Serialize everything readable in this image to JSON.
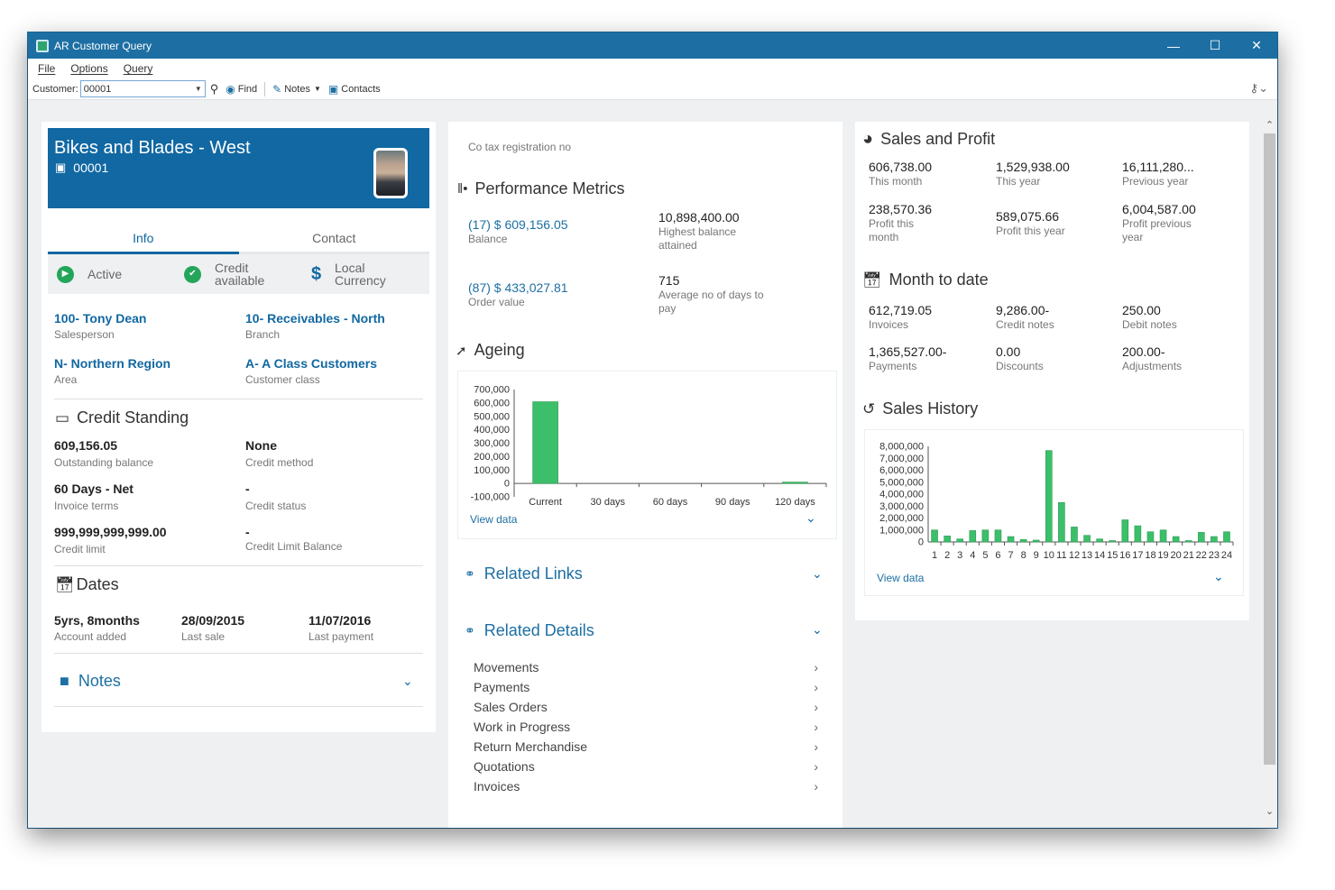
{
  "window": {
    "title": "AR Customer Query"
  },
  "menu": {
    "file": "File",
    "options": "Options",
    "query": "Query"
  },
  "toolbar": {
    "customer_label": "Customer:",
    "customer_value": "00001",
    "find": "Find",
    "notes": "Notes",
    "contacts": "Contacts"
  },
  "customer": {
    "name": "Bikes and Blades - West",
    "code": "00001"
  },
  "tabs": {
    "info": "Info",
    "contact": "Contact"
  },
  "status": {
    "active": "Active",
    "credit_1": "Credit",
    "credit_2": "available",
    "currency_1": "Local",
    "currency_2": "Currency"
  },
  "info": {
    "salesperson": "100- Tony Dean",
    "salesperson_label": "Salesperson",
    "branch": "10- Receivables - North",
    "branch_label": "Branch",
    "area": "N- Northern Region",
    "area_label": "Area",
    "customer_class": "A- A Class Customers",
    "customer_class_label": "Customer class"
  },
  "credit": {
    "title": "Credit Standing",
    "outstanding": "609,156.05",
    "outstanding_label": "Outstanding balance",
    "method": "None",
    "method_label": "Credit method",
    "terms": "60 Days - Net",
    "terms_label": "Invoice terms",
    "status": "-",
    "status_label": "Credit status",
    "limit": "999,999,999,999.00",
    "limit_label": "Credit limit",
    "limit_balance": "-",
    "limit_balance_label": "Credit Limit Balance"
  },
  "dates": {
    "title": "Dates",
    "added": "5yrs, 8months",
    "added_label": "Account added",
    "last_sale": "28/09/2015",
    "last_sale_label": "Last sale",
    "last_payment": "11/07/2016",
    "last_payment_label": "Last payment"
  },
  "notes": {
    "title": "Notes"
  },
  "tax": {
    "label": "Co tax registration no"
  },
  "performance": {
    "title": "Performance Metrics",
    "balance": "(17) $ 609,156.05",
    "balance_label": "Balance",
    "highest": "10,898,400.00",
    "highest_label_1": "Highest balance",
    "highest_label_2": "attained",
    "order": "(87) $ 433,027.81",
    "order_label": "Order value",
    "days": "715",
    "days_label_1": "Average no of days to",
    "days_label_2": "pay"
  },
  "ageing": {
    "title": "Ageing",
    "view_data": "View data"
  },
  "related_links": {
    "title": "Related Links"
  },
  "related_details": {
    "title": "Related Details",
    "items": [
      "Movements",
      "Payments",
      "Sales Orders",
      "Work in Progress",
      "Return Merchandise",
      "Quotations",
      "Invoices"
    ]
  },
  "sales_profit": {
    "title": "Sales and Profit",
    "this_month": "606,738.00",
    "this_month_label": "This month",
    "this_year": "1,529,938.00",
    "this_year_label": "This year",
    "previous_year": "16,111,280...",
    "previous_year_label": "Previous year",
    "profit_month": "238,570.36",
    "profit_month_label_1": "Profit this",
    "profit_month_label_2": "month",
    "profit_year": "589,075.66",
    "profit_year_label": "Profit this year",
    "profit_prev": "6,004,587.00",
    "profit_prev_label_1": "Profit previous",
    "profit_prev_label_2": "year"
  },
  "mtd": {
    "title": "Month to date",
    "invoices": "612,719.05",
    "invoices_label": "Invoices",
    "credit_notes": "9,286.00-",
    "credit_notes_label": "Credit notes",
    "debit_notes": "250.00",
    "debit_notes_label": "Debit notes",
    "payments": "1,365,527.00-",
    "payments_label": "Payments",
    "discounts": "0.00",
    "discounts_label": "Discounts",
    "adjustments": "200.00-",
    "adjustments_label": "Adjustments"
  },
  "sales_history": {
    "title": "Sales History",
    "view_data": "View data"
  },
  "colors": {
    "brand": "#1168a2",
    "bar": "#3cbf6a",
    "active": "#23a55a"
  },
  "chart_data": [
    {
      "type": "bar",
      "categories": [
        "Current",
        "30 days",
        "60 days",
        "90 days",
        "120 days"
      ],
      "values": [
        609156,
        0,
        0,
        0,
        1500
      ],
      "ylim": [
        -100000,
        700000
      ],
      "yticks": [
        "700,000",
        "600,000",
        "500,000",
        "400,000",
        "300,000",
        "200,000",
        "100,000",
        "0",
        "-100,000"
      ],
      "grid": false
    },
    {
      "type": "bar",
      "categories": [
        "1",
        "2",
        "3",
        "4",
        "5",
        "6",
        "7",
        "8",
        "9",
        "10",
        "11",
        "12",
        "13",
        "14",
        "15",
        "16",
        "17",
        "18",
        "19",
        "20",
        "21",
        "22",
        "23",
        "24"
      ],
      "values": [
        1000000,
        500000,
        250000,
        950000,
        1000000,
        1000000,
        450000,
        200000,
        150000,
        7650000,
        3300000,
        1250000,
        550000,
        250000,
        100000,
        1850000,
        1350000,
        850000,
        1000000,
        450000,
        100000,
        800000,
        450000,
        850000
      ],
      "ylim": [
        0,
        8000000
      ],
      "yticks": [
        "8,000,000",
        "7,000,000",
        "6,000,000",
        "5,000,000",
        "4,000,000",
        "3,000,000",
        "2,000,000",
        "1,000,000",
        "0"
      ],
      "grid": false
    }
  ]
}
